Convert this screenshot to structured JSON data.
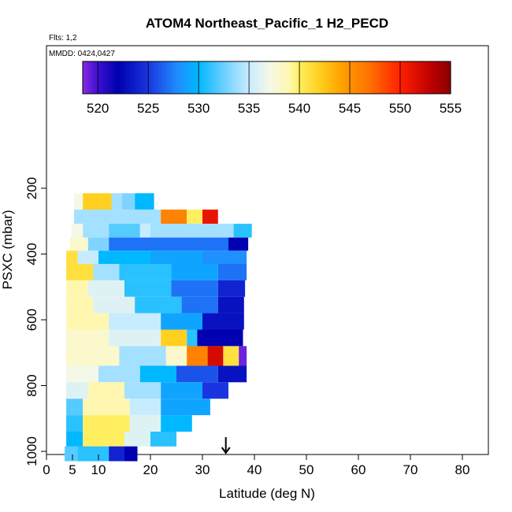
{
  "chart_data": {
    "type": "heatmap",
    "title": "ATOM4 Northeast_Pacific_1 H2_PECD",
    "flights_label": "Flts: 1,2",
    "dates_label": "MMDD: 0424,0427",
    "xlabel": "Latitude (deg N)",
    "ylabel": "PSXC (mbar)",
    "xlim": [
      0,
      85
    ],
    "ylim": [
      1000,
      0
    ],
    "xticks": [
      0,
      5,
      10,
      20,
      30,
      40,
      50,
      60,
      70,
      80
    ],
    "yticks": [
      200,
      400,
      600,
      800,
      1000
    ],
    "colorbar": {
      "min": 518.5,
      "max": 555,
      "ticks": [
        520,
        525,
        530,
        535,
        540,
        545,
        550,
        555
      ],
      "stops": [
        [
          518.5,
          "#8a2be2"
        ],
        [
          520,
          "#3a10d0"
        ],
        [
          522,
          "#0000b0"
        ],
        [
          525,
          "#1a35e0"
        ],
        [
          528,
          "#1e90ff"
        ],
        [
          530,
          "#00b8ff"
        ],
        [
          533,
          "#7fd4ff"
        ],
        [
          535,
          "#c8ecff"
        ],
        [
          537,
          "#f4f8e8"
        ],
        [
          539,
          "#fff7b0"
        ],
        [
          540,
          "#ffef60"
        ],
        [
          542,
          "#ffd020"
        ],
        [
          544,
          "#ffa500"
        ],
        [
          547,
          "#ff7000"
        ],
        [
          550,
          "#ff2000"
        ],
        [
          553,
          "#c00000"
        ],
        [
          555,
          "#8b0000"
        ]
      ]
    },
    "arrow_latitude": 34.5,
    "bands": [
      {
        "p": [
          215,
          265
        ],
        "segments": [
          [
            5.3,
            7,
            537
          ],
          [
            7,
            12.5,
            542
          ],
          [
            12.5,
            14.5,
            534
          ],
          [
            14.5,
            17,
            533
          ],
          [
            17,
            20.7,
            530
          ]
        ]
      },
      {
        "p": [
          265,
          308
        ],
        "segments": [
          [
            5.3,
            22,
            534
          ],
          [
            22,
            27,
            546
          ],
          [
            27,
            30,
            540
          ],
          [
            30,
            33,
            551
          ]
        ]
      },
      {
        "p": [
          308,
          350
        ],
        "segments": [
          [
            4.8,
            7,
            537
          ],
          [
            7,
            12,
            534
          ],
          [
            12,
            18,
            532
          ],
          [
            18,
            20,
            535
          ],
          [
            20,
            36,
            534
          ],
          [
            36,
            39.5,
            531
          ]
        ]
      },
      {
        "p": [
          350,
          390
        ],
        "segments": [
          [
            4.5,
            8,
            538
          ],
          [
            8,
            12,
            533
          ],
          [
            12,
            30,
            527
          ],
          [
            30,
            35,
            527
          ],
          [
            35,
            38.8,
            522
          ]
        ]
      },
      {
        "p": [
          390,
          430
        ],
        "segments": [
          [
            3.8,
            6,
            541
          ],
          [
            6,
            10,
            535
          ],
          [
            10,
            20,
            530
          ],
          [
            20,
            30,
            529
          ],
          [
            30,
            38.5,
            528
          ]
        ]
      },
      {
        "p": [
          430,
          480
        ],
        "segments": [
          [
            3.8,
            9,
            541
          ],
          [
            9,
            14,
            534
          ],
          [
            14,
            24,
            531
          ],
          [
            24,
            33,
            529
          ],
          [
            33,
            38.5,
            527
          ]
        ]
      },
      {
        "p": [
          480,
          530
        ],
        "segments": [
          [
            3.8,
            8,
            539
          ],
          [
            8,
            15,
            536
          ],
          [
            15,
            24,
            531
          ],
          [
            24,
            33,
            527
          ],
          [
            33,
            38.2,
            524
          ]
        ]
      },
      {
        "p": [
          530,
          580
        ],
        "segments": [
          [
            3.8,
            9,
            539
          ],
          [
            9,
            17,
            536
          ],
          [
            17,
            26,
            531
          ],
          [
            26,
            33,
            527
          ],
          [
            33,
            38,
            523
          ]
        ]
      },
      {
        "p": [
          580,
          630
        ],
        "segments": [
          [
            3.8,
            12,
            539
          ],
          [
            12,
            22,
            535
          ],
          [
            22,
            30,
            529
          ],
          [
            30,
            38,
            523
          ]
        ]
      },
      {
        "p": [
          630,
          680
        ],
        "segments": [
          [
            3.8,
            12,
            538
          ],
          [
            12,
            22,
            536
          ],
          [
            22,
            27,
            542
          ],
          [
            27,
            29,
            531
          ],
          [
            29,
            37.8,
            522
          ]
        ]
      },
      {
        "p": [
          680,
          740
        ],
        "segments": [
          [
            3.8,
            14,
            538
          ],
          [
            14,
            23,
            534
          ],
          [
            23,
            27,
            538
          ],
          [
            27,
            31,
            546
          ],
          [
            31,
            34,
            552
          ],
          [
            34,
            37,
            541
          ],
          [
            37,
            38.5,
            519
          ]
        ]
      },
      {
        "p": [
          740,
          790
        ],
        "segments": [
          [
            3.8,
            10,
            537
          ],
          [
            10,
            18,
            534
          ],
          [
            18,
            25,
            530
          ],
          [
            25,
            33,
            526
          ],
          [
            33,
            38.5,
            523
          ]
        ]
      },
      {
        "p": [
          790,
          840
        ],
        "segments": [
          [
            3.8,
            8,
            536
          ],
          [
            8,
            15,
            539
          ],
          [
            15,
            22,
            534
          ],
          [
            22,
            30,
            529
          ],
          [
            30,
            35,
            525
          ]
        ]
      },
      {
        "p": [
          840,
          890
        ],
        "segments": [
          [
            3.8,
            7,
            532
          ],
          [
            7,
            16,
            539
          ],
          [
            16,
            22,
            535
          ],
          [
            22,
            31.5,
            529
          ]
        ]
      },
      {
        "p": [
          890,
          940
        ],
        "segments": [
          [
            3.8,
            7,
            531
          ],
          [
            7,
            16,
            540
          ],
          [
            16,
            22,
            536
          ],
          [
            22,
            28,
            530
          ]
        ]
      },
      {
        "p": [
          940,
          985
        ],
        "segments": [
          [
            3.8,
            7,
            530
          ],
          [
            7,
            15,
            540
          ],
          [
            15,
            20,
            536
          ],
          [
            20,
            25,
            531
          ]
        ]
      },
      {
        "p": [
          985,
          1030
        ],
        "segments": [
          [
            3.5,
            6,
            532
          ],
          [
            6,
            12,
            531
          ],
          [
            12,
            15,
            524
          ],
          [
            15,
            17.5,
            522
          ]
        ]
      }
    ]
  }
}
